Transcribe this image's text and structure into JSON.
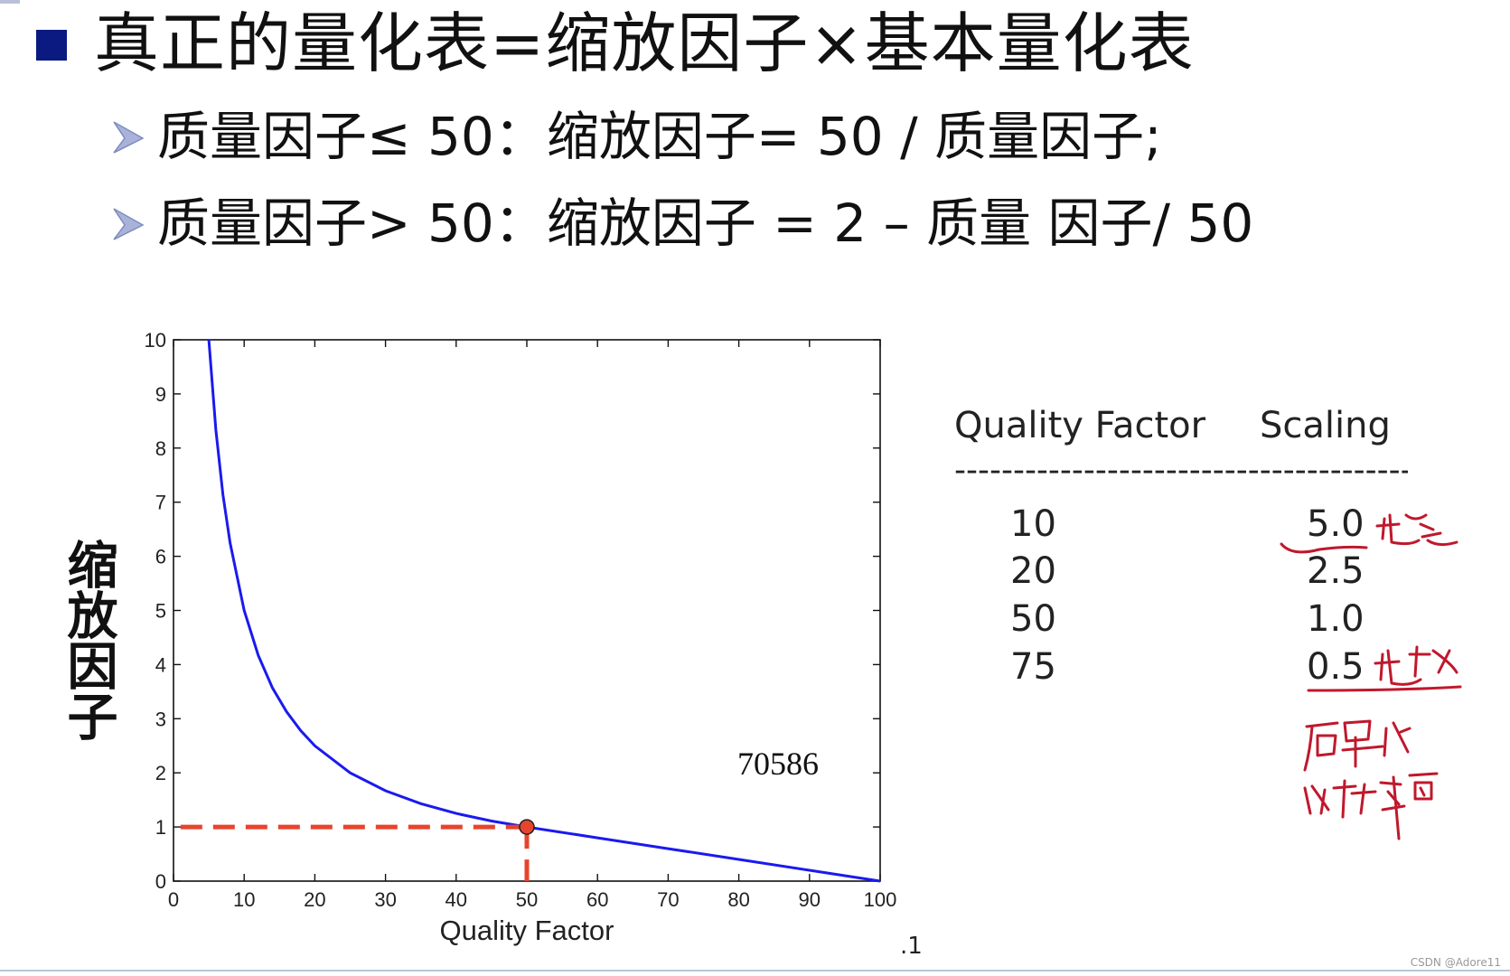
{
  "slide": {
    "title": "真正的量化表=缩放因子×基本量化表",
    "points": [
      "质量因子≤ 50：缩放因子= 50 / 质量因子;",
      "质量因子> 50：缩放因子 = 2 – 质量 因子/ 50"
    ],
    "page_mark": ".1",
    "watermark": "CSDN @Adore11"
  },
  "colors": {
    "bullet": "#0a1a80",
    "arrow": "#a9b3d9",
    "curve": "#1a1aee",
    "marker": "#e8432c",
    "ink": "#c0182c"
  },
  "chart_data": {
    "type": "line",
    "xlabel": "Quality Factor",
    "ylabel": "缩放因子",
    "xlim": [
      0,
      100
    ],
    "ylim": [
      0,
      10
    ],
    "x_ticks": [
      0,
      10,
      20,
      30,
      40,
      50,
      60,
      70,
      80,
      90,
      100
    ],
    "y_ticks": [
      0,
      1,
      2,
      3,
      4,
      5,
      6,
      7,
      8,
      9,
      10
    ],
    "grid": false,
    "series": [
      {
        "x": [
          5,
          6,
          7,
          8,
          10,
          12,
          14,
          16,
          18,
          20,
          25,
          30,
          35,
          40,
          45,
          50,
          60,
          70,
          80,
          90,
          100
        ],
        "y": [
          10,
          8.33,
          7.14,
          6.25,
          5,
          4.17,
          3.57,
          3.13,
          2.78,
          2.5,
          2,
          1.67,
          1.43,
          1.25,
          1.11,
          1,
          0.8,
          0.6,
          0.4,
          0.2,
          0
        ]
      }
    ],
    "highlight_point": {
      "x": 50,
      "y": 1
    },
    "annotations": [
      "70586"
    ]
  },
  "table": {
    "headers": [
      "Quality Factor",
      "Scaling"
    ],
    "separator": "----------------------------------------------------------------",
    "rows": [
      {
        "quality": "10",
        "scaling": "5.0"
      },
      {
        "quality": "20",
        "scaling": "2.5"
      },
      {
        "quality": "50",
        "scaling": "1.0"
      },
      {
        "quality": "75",
        "scaling": "0.5"
      }
    ]
  },
  "handwriting": [
    "越差",
    "越好",
    "质量越低",
    "比特率高"
  ]
}
